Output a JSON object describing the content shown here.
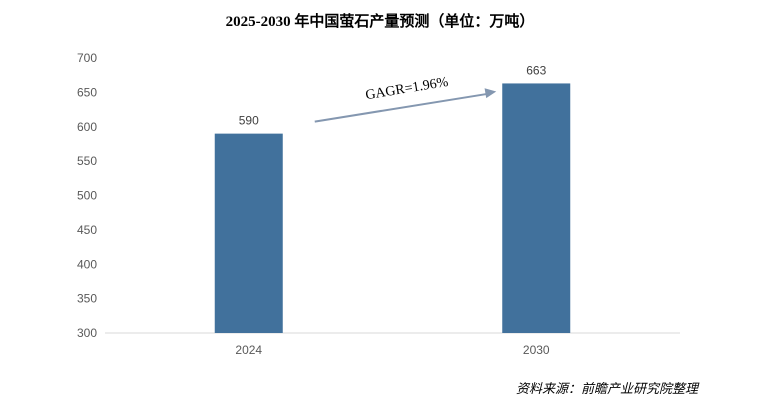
{
  "chart_title": "2025-2030 年中国萤石产量预测（单位：万吨）",
  "source_note": "资料来源：前瞻产业研究院整理",
  "chart_data": {
    "type": "bar",
    "categories": [
      "2024",
      "2030"
    ],
    "values": [
      590,
      663
    ],
    "data_labels": [
      "590",
      "663"
    ],
    "ylim": [
      300,
      700
    ],
    "yticks": [
      300,
      350,
      400,
      450,
      500,
      550,
      600,
      650,
      700
    ],
    "grid": false,
    "legend": "none",
    "annotation": {
      "text": "GAGR=1.96%",
      "type": "arrow",
      "from_category": "2024",
      "to_category": "2030"
    },
    "colors": {
      "bar": "#41719c",
      "arrow": "#8497b0",
      "axis": "#d9d9d9"
    }
  }
}
